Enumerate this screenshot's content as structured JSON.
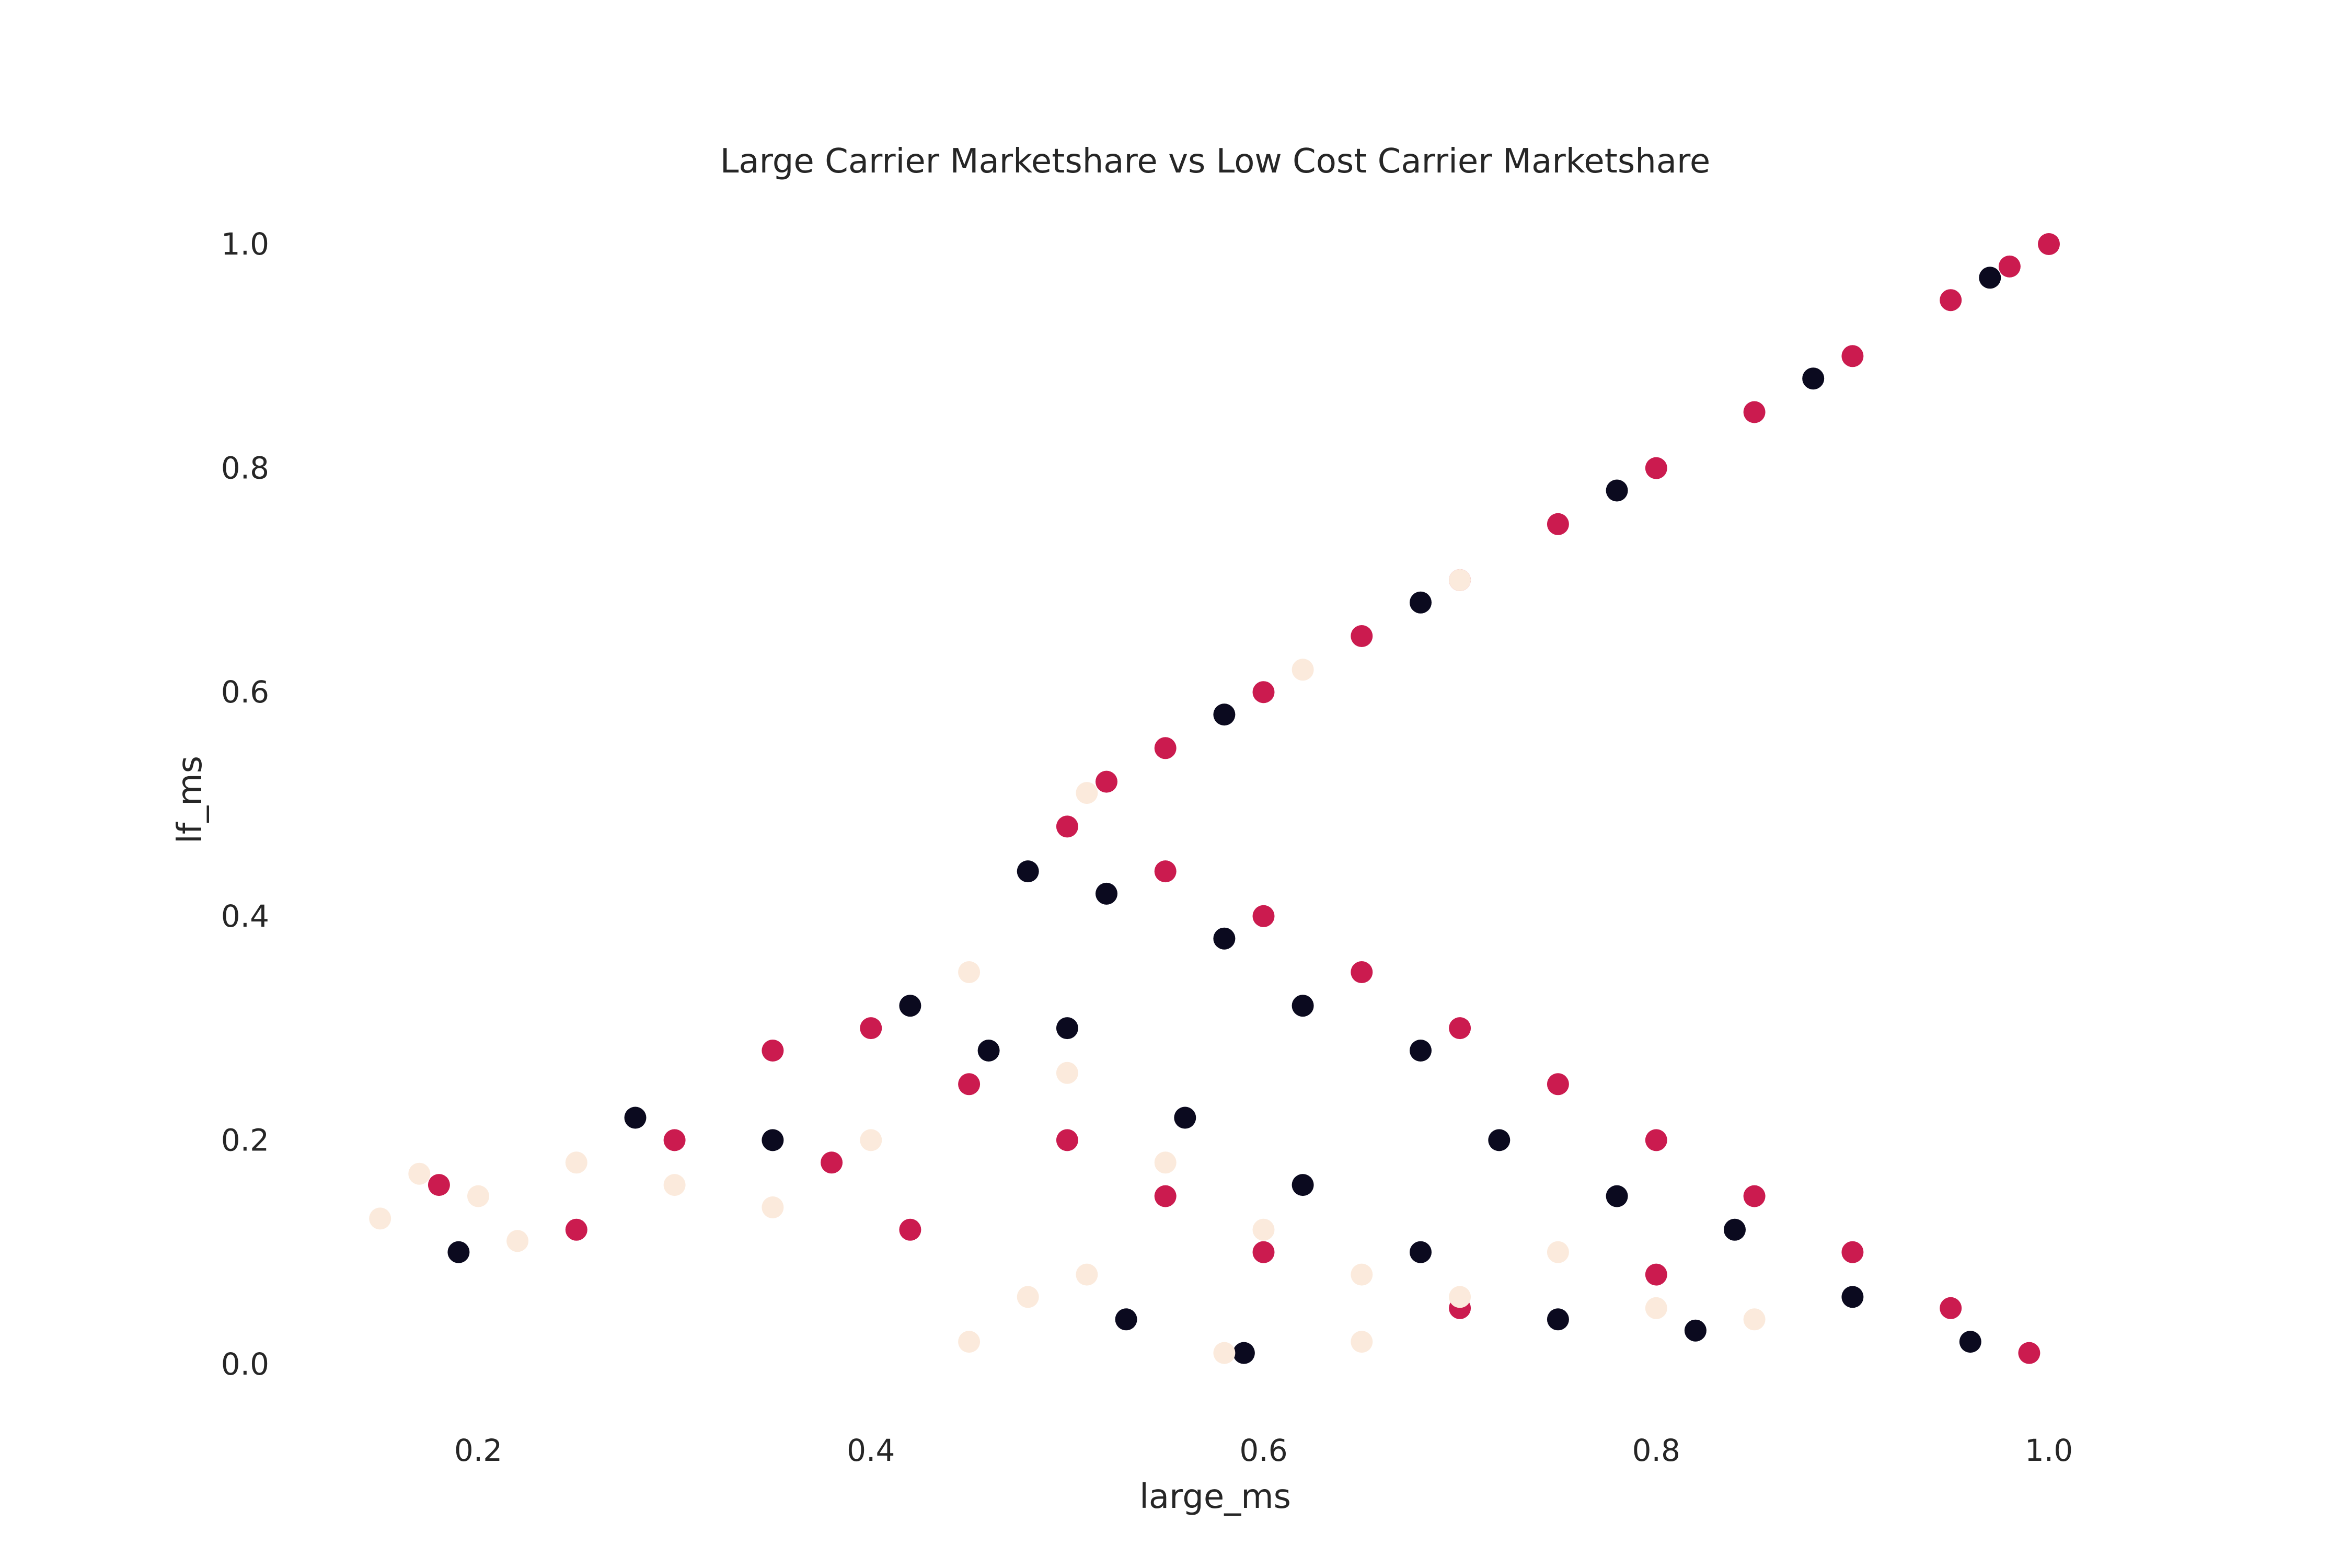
{
  "chart_data": {
    "type": "scatter",
    "title": "Large Carrier Marketshare vs Low Cost Carrier Marketshare",
    "xlabel": "large_ms",
    "ylabel": "lf_ms",
    "xlim": [
      0.13,
      1.05
    ],
    "ylim": [
      -0.05,
      1.03
    ],
    "xticks": [
      0.2,
      0.4,
      0.6,
      0.8,
      1.0
    ],
    "yticks": [
      0.0,
      0.2,
      0.4,
      0.6,
      0.8,
      1.0
    ],
    "xtick_labels": [
      "0.2",
      "0.4",
      "0.6",
      "0.8",
      "1.0"
    ],
    "ytick_labels": [
      "0.0",
      "0.2",
      "0.4",
      "0.6",
      "0.8",
      "1.0"
    ],
    "grid": false,
    "legend": "none",
    "marker_colors": [
      "#fbeadc",
      "#0b0a1f",
      "#cb1b4f"
    ],
    "series": [
      {
        "color": "#cb1b4f",
        "points": [
          [
            1.0,
            1.0
          ],
          [
            0.98,
            0.98
          ],
          [
            0.95,
            0.95
          ],
          [
            0.9,
            0.9
          ],
          [
            0.85,
            0.85
          ],
          [
            0.8,
            0.8
          ],
          [
            0.75,
            0.75
          ],
          [
            0.7,
            0.7
          ],
          [
            0.65,
            0.65
          ],
          [
            0.6,
            0.6
          ],
          [
            0.55,
            0.55
          ],
          [
            0.52,
            0.52
          ],
          [
            0.5,
            0.48
          ],
          [
            0.55,
            0.44
          ],
          [
            0.6,
            0.4
          ],
          [
            0.65,
            0.35
          ],
          [
            0.7,
            0.3
          ],
          [
            0.75,
            0.25
          ],
          [
            0.8,
            0.2
          ],
          [
            0.85,
            0.15
          ],
          [
            0.9,
            0.1
          ],
          [
            0.95,
            0.05
          ],
          [
            0.99,
            0.01
          ],
          [
            0.3,
            0.2
          ],
          [
            0.35,
            0.28
          ],
          [
            0.4,
            0.3
          ],
          [
            0.45,
            0.25
          ],
          [
            0.5,
            0.2
          ],
          [
            0.55,
            0.15
          ],
          [
            0.6,
            0.1
          ],
          [
            0.7,
            0.05
          ],
          [
            0.8,
            0.08
          ],
          [
            0.18,
            0.16
          ],
          [
            0.25,
            0.12
          ],
          [
            0.38,
            0.18
          ],
          [
            0.42,
            0.12
          ]
        ]
      },
      {
        "color": "#0b0a1f",
        "points": [
          [
            0.97,
            0.97
          ],
          [
            0.88,
            0.88
          ],
          [
            0.78,
            0.78
          ],
          [
            0.68,
            0.68
          ],
          [
            0.58,
            0.58
          ],
          [
            0.48,
            0.44
          ],
          [
            0.52,
            0.42
          ],
          [
            0.58,
            0.38
          ],
          [
            0.62,
            0.32
          ],
          [
            0.68,
            0.28
          ],
          [
            0.72,
            0.2
          ],
          [
            0.78,
            0.15
          ],
          [
            0.84,
            0.12
          ],
          [
            0.9,
            0.06
          ],
          [
            0.96,
            0.02
          ],
          [
            0.28,
            0.22
          ],
          [
            0.35,
            0.2
          ],
          [
            0.42,
            0.32
          ],
          [
            0.46,
            0.28
          ],
          [
            0.5,
            0.3
          ],
          [
            0.56,
            0.22
          ],
          [
            0.62,
            0.16
          ],
          [
            0.68,
            0.1
          ],
          [
            0.75,
            0.04
          ],
          [
            0.82,
            0.03
          ],
          [
            0.19,
            0.1
          ],
          [
            0.53,
            0.04
          ],
          [
            0.59,
            0.01
          ]
        ]
      },
      {
        "color": "#fbeadc",
        "points": [
          [
            0.7,
            0.7
          ],
          [
            0.62,
            0.62
          ],
          [
            0.51,
            0.51
          ],
          [
            0.15,
            0.13
          ],
          [
            0.17,
            0.17
          ],
          [
            0.2,
            0.15
          ],
          [
            0.22,
            0.11
          ],
          [
            0.25,
            0.18
          ],
          [
            0.3,
            0.16
          ],
          [
            0.35,
            0.14
          ],
          [
            0.4,
            0.2
          ],
          [
            0.45,
            0.35
          ],
          [
            0.5,
            0.26
          ],
          [
            0.55,
            0.18
          ],
          [
            0.6,
            0.12
          ],
          [
            0.65,
            0.08
          ],
          [
            0.7,
            0.06
          ],
          [
            0.75,
            0.1
          ],
          [
            0.8,
            0.05
          ],
          [
            0.85,
            0.04
          ],
          [
            0.45,
            0.02
          ],
          [
            0.48,
            0.06
          ],
          [
            0.51,
            0.08
          ],
          [
            0.58,
            0.01
          ],
          [
            0.65,
            0.02
          ]
        ]
      }
    ]
  }
}
